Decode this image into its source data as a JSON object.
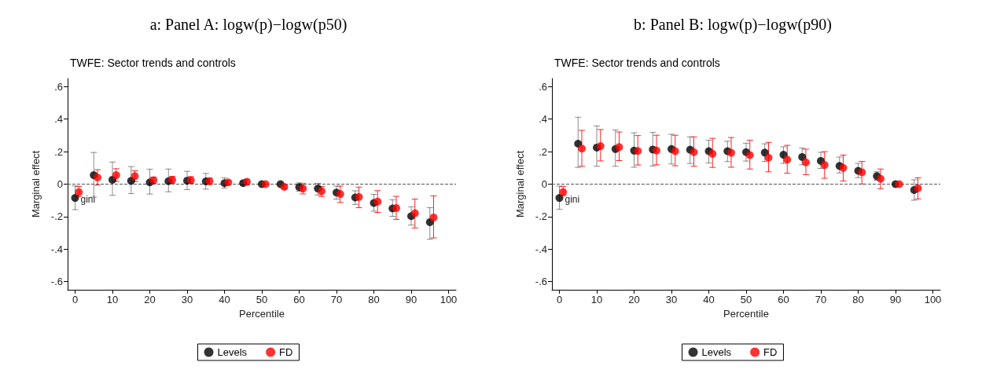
{
  "chart_data": [
    {
      "type": "scatter",
      "title": "a: Panel A: logw(p)−logw(p50)",
      "subtitle": "TWFE: Sector trends and controls",
      "xlabel": "Percentile",
      "ylabel": "Marginal effect",
      "xlim": [
        -2,
        102
      ],
      "xticks": [
        0,
        10,
        20,
        30,
        40,
        50,
        60,
        70,
        80,
        90,
        100
      ],
      "ylim": [
        -0.65,
        0.65
      ],
      "yticks": [
        {
          "value": -0.6,
          "label": "-.6"
        },
        {
          "value": -0.4,
          "label": "-.4"
        },
        {
          "value": -0.2,
          "label": "-.2"
        },
        {
          "value": 0,
          "label": "0"
        },
        {
          "value": 0.2,
          "label": ".2"
        },
        {
          "value": 0.4,
          "label": ".4"
        },
        {
          "value": 0.6,
          "label": ".6"
        }
      ],
      "grid": false,
      "legend": "bottom",
      "marker": "circle",
      "ref_lines": [
        {
          "axis": "y",
          "value": 0,
          "line_style": "dashed",
          "color": "#555555"
        }
      ],
      "annotations": [
        {
          "text": "gini",
          "x": 0,
          "y": -0.085
        }
      ],
      "series": [
        {
          "name": "Levels",
          "color": "#000000",
          "x": [
            0,
            5,
            10,
            15,
            20,
            25,
            30,
            35,
            40,
            45,
            50,
            55,
            60,
            65,
            70,
            75,
            80,
            85,
            90,
            95
          ],
          "values": [
            -0.085,
            0.055,
            0.027,
            0.02,
            0.011,
            0.018,
            0.021,
            0.017,
            0.006,
            0.006,
            0,
            0,
            -0.018,
            -0.027,
            -0.052,
            -0.082,
            -0.116,
            -0.15,
            -0.197,
            -0.234
          ],
          "errors": [
            [
              -0.157,
              -0.011
            ],
            [
              -0.08,
              0.195
            ],
            [
              -0.069,
              0.136
            ],
            [
              -0.058,
              0.108
            ],
            [
              -0.061,
              0.092
            ],
            [
              -0.047,
              0.093
            ],
            [
              -0.034,
              0.079
            ],
            [
              -0.031,
              0.066
            ],
            [
              -0.024,
              0.038
            ],
            [
              -0.005,
              0.017
            ],
            null,
            null,
            [
              -0.043,
              0.008
            ],
            [
              -0.067,
              0.005
            ],
            [
              -0.092,
              -0.012
            ],
            [
              -0.125,
              -0.041
            ],
            [
              -0.166,
              -0.063
            ],
            [
              -0.198,
              -0.096
            ],
            [
              -0.252,
              -0.139
            ],
            [
              -0.339,
              -0.145
            ]
          ]
        },
        {
          "name": "FD",
          "color": "#ff0000",
          "x": [
            1,
            6,
            11,
            16,
            21,
            26,
            31,
            36,
            41,
            46,
            51,
            56,
            61,
            66,
            71,
            76,
            81,
            86,
            91,
            96
          ],
          "values": [
            -0.049,
            0.041,
            0.055,
            0.049,
            0.024,
            0.027,
            0.024,
            0.018,
            0.011,
            0.014,
            0,
            -0.017,
            -0.027,
            -0.043,
            -0.061,
            -0.079,
            -0.107,
            -0.147,
            -0.179,
            -0.205
          ],
          "errors": [
            [
              -0.076,
              -0.014
            ],
            [
              -0.006,
              0.089
            ],
            [
              0.017,
              0.095
            ],
            [
              0.015,
              0.082
            ],
            [
              0.005,
              0.043
            ],
            [
              0.006,
              0.047
            ],
            [
              0.005,
              0.046
            ],
            [
              -0.002,
              0.038
            ],
            [
              -0.002,
              0.021
            ],
            [
              -0.002,
              0.029
            ],
            null,
            [
              -0.027,
              -0.008
            ],
            [
              -0.06,
              0.003
            ],
            [
              -0.076,
              -0.014
            ],
            [
              -0.113,
              -0.012
            ],
            [
              -0.145,
              -0.018
            ],
            [
              -0.174,
              -0.04
            ],
            [
              -0.217,
              -0.075
            ],
            [
              -0.27,
              -0.092
            ],
            [
              -0.331,
              -0.072
            ]
          ]
        }
      ]
    },
    {
      "type": "scatter",
      "title": "b: Panel B: logw(p)−logw(p90)",
      "subtitle": "TWFE: Sector trends and controls",
      "xlabel": "Percentile",
      "ylabel": "Marginal effect",
      "xlim": [
        -2,
        102
      ],
      "xticks": [
        0,
        10,
        20,
        30,
        40,
        50,
        60,
        70,
        80,
        90,
        100
      ],
      "ylim": [
        -0.65,
        0.65
      ],
      "yticks": [
        {
          "value": -0.6,
          "label": "-.6"
        },
        {
          "value": -0.4,
          "label": "-.4"
        },
        {
          "value": -0.2,
          "label": "-.2"
        },
        {
          "value": 0,
          "label": "0"
        },
        {
          "value": 0.2,
          "label": ".2"
        },
        {
          "value": 0.4,
          "label": ".4"
        },
        {
          "value": 0.6,
          "label": ".6"
        }
      ],
      "grid": false,
      "legend": "bottom",
      "marker": "circle",
      "ref_lines": [
        {
          "axis": "y",
          "value": 0,
          "line_style": "dashed",
          "color": "#555555"
        }
      ],
      "annotations": [
        {
          "text": "gini",
          "x": 0,
          "y": -0.085
        }
      ],
      "series": [
        {
          "name": "Levels",
          "color": "#000000",
          "x": [
            0,
            5,
            10,
            15,
            20,
            25,
            30,
            35,
            40,
            45,
            50,
            55,
            60,
            65,
            70,
            75,
            80,
            85,
            90,
            95
          ],
          "values": [
            -0.085,
            0.249,
            0.225,
            0.216,
            0.206,
            0.213,
            0.216,
            0.212,
            0.203,
            0.203,
            0.197,
            0.194,
            0.181,
            0.167,
            0.143,
            0.112,
            0.082,
            0.049,
            0,
            -0.036
          ],
          "errors": [
            [
              -0.154,
              -0.012
            ],
            [
              0.103,
              0.412
            ],
            [
              0.11,
              0.358
            ],
            [
              0.11,
              0.333
            ],
            [
              0.104,
              0.316
            ],
            [
              0.112,
              0.318
            ],
            [
              0.124,
              0.307
            ],
            [
              0.127,
              0.291
            ],
            [
              0.13,
              0.27
            ],
            [
              0.139,
              0.264
            ],
            [
              0.142,
              0.252
            ],
            [
              0.139,
              0.248
            ],
            [
              0.128,
              0.23
            ],
            [
              0.119,
              0.222
            ],
            [
              0.097,
              0.196
            ],
            [
              0.069,
              0.167
            ],
            [
              0.04,
              0.128
            ],
            [
              0.024,
              0.076
            ],
            null,
            [
              -0.099,
              0.027
            ]
          ]
        },
        {
          "name": "FD",
          "color": "#ff0000",
          "x": [
            1,
            6,
            11,
            16,
            21,
            26,
            31,
            36,
            41,
            46,
            51,
            56,
            61,
            66,
            71,
            76,
            81,
            86,
            91,
            96
          ],
          "values": [
            -0.049,
            0.219,
            0.234,
            0.228,
            0.204,
            0.207,
            0.203,
            0.197,
            0.187,
            0.193,
            0.179,
            0.163,
            0.151,
            0.134,
            0.118,
            0.1,
            0.073,
            0.033,
            0,
            -0.025
          ],
          "errors": [
            [
              -0.07,
              -0.015
            ],
            [
              0.11,
              0.331
            ],
            [
              0.143,
              0.336
            ],
            [
              0.145,
              0.321
            ],
            [
              0.118,
              0.299
            ],
            [
              0.119,
              0.301
            ],
            [
              0.113,
              0.301
            ],
            [
              0.11,
              0.291
            ],
            [
              0.103,
              0.282
            ],
            [
              0.104,
              0.287
            ],
            [
              0.093,
              0.27
            ],
            [
              0.076,
              0.257
            ],
            [
              0.067,
              0.239
            ],
            [
              0.058,
              0.215
            ],
            [
              0.036,
              0.2
            ],
            [
              0.019,
              0.179
            ],
            [
              0.001,
              0.14
            ],
            [
              -0.028,
              0.093
            ],
            null,
            [
              -0.091,
              0.039
            ]
          ]
        }
      ]
    }
  ]
}
